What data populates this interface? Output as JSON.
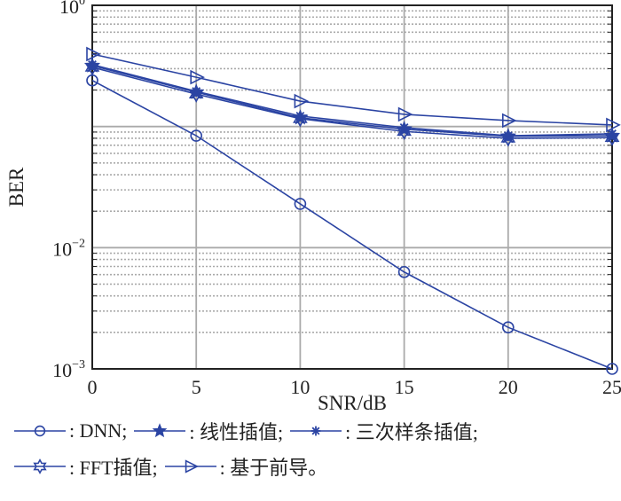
{
  "chart_data": {
    "type": "line",
    "xlabel": "SNR/dB",
    "ylabel": "BER",
    "x": [
      0,
      5,
      10,
      15,
      20,
      25
    ],
    "xlim": [
      0,
      25
    ],
    "xticks": [
      "0",
      "5",
      "10",
      "15",
      "20",
      "25"
    ],
    "ylim": [
      0.001,
      1
    ],
    "yscale": "log",
    "yticks": [
      {
        "value": 1,
        "base": "10",
        "exp": "0"
      },
      {
        "value": 0.01,
        "base": "10",
        "exp": "−2"
      },
      {
        "value": 0.001,
        "base": "10",
        "exp": "−3"
      }
    ],
    "grid": true,
    "legend_position": "bottom",
    "color": "#2b44a3",
    "series": [
      {
        "name": "DNN",
        "legend_text": ": DNN;",
        "marker": "circle",
        "values": [
          0.24,
          0.084,
          0.023,
          0.0063,
          0.0022,
          0.001
        ]
      },
      {
        "name": "线性插值",
        "legend_text": ": 线性插值;",
        "marker": "pentagram",
        "values": [
          0.318,
          0.192,
          0.118,
          0.095,
          0.083,
          0.084
        ]
      },
      {
        "name": "三次样条插值",
        "legend_text": ": 三次样条插值;",
        "marker": "asterisk",
        "values": [
          0.324,
          0.195,
          0.122,
          0.098,
          0.084,
          0.087
        ]
      },
      {
        "name": "FFT插值",
        "legend_text": ": FFT插值;",
        "marker": "hexagram",
        "values": [
          0.308,
          0.185,
          0.116,
          0.091,
          0.08,
          0.081
        ]
      },
      {
        "name": "基于前导",
        "legend_text": ": 基于前导。",
        "marker": "triangle-right",
        "values": [
          0.396,
          0.255,
          0.162,
          0.126,
          0.112,
          0.103
        ]
      }
    ]
  }
}
